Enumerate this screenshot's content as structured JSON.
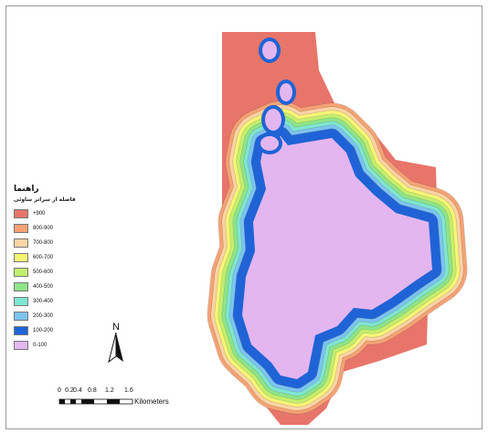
{
  "legend": {
    "title": "راهنما",
    "subtitle": "فاصله از سراتر ساوئی",
    "items": [
      {
        "label": "+900",
        "color": "#e8756a"
      },
      {
        "label": "800-900",
        "color": "#f5a274"
      },
      {
        "label": "700-800",
        "color": "#fbd4a4"
      },
      {
        "label": "600-700",
        "color": "#f6f675"
      },
      {
        "label": "500-600",
        "color": "#c3ef6e"
      },
      {
        "label": "400-500",
        "color": "#8ee48a"
      },
      {
        "label": "300-400",
        "color": "#7fe6d2"
      },
      {
        "label": "200-300",
        "color": "#7ec3f0"
      },
      {
        "label": "100-200",
        "color": "#1f63d6"
      },
      {
        "label": "0-100",
        "color": "#e3b6f0"
      }
    ]
  },
  "north_arrow": {
    "label": "N"
  },
  "scale_bar": {
    "ticks": [
      "0",
      "0.2",
      "0.4",
      "0.8",
      "1.2",
      "1.6"
    ],
    "unit": "Kilometers"
  },
  "map": {
    "background": "#ffffff",
    "frame_color": "#9a9a9a"
  }
}
